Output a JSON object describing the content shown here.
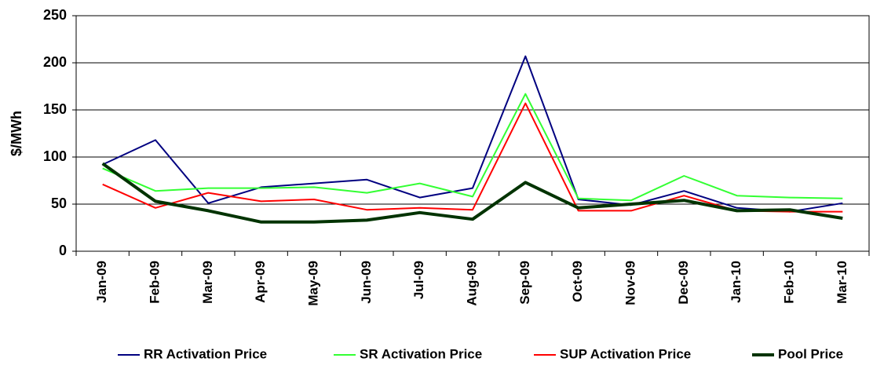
{
  "chart_data": {
    "type": "line",
    "y_label": "$/MWh",
    "categories": [
      "Jan-09",
      "Feb-09",
      "Mar-09",
      "Apr-09",
      "May-09",
      "Jun-09",
      "Jul-09",
      "Aug-09",
      "Sep-09",
      "Oct-09",
      "Nov-09",
      "Dec-09",
      "Jan-10",
      "Feb-10",
      "Mar-10"
    ],
    "series": [
      {
        "name": "RR Activation Price",
        "color": "#000080",
        "values": [
          92,
          118,
          51,
          68,
          72,
          76,
          57,
          67,
          207,
          55,
          49,
          64,
          46,
          42,
          51
        ]
      },
      {
        "name": "SR Activation Price",
        "color": "#33ff33",
        "values": [
          88,
          64,
          67,
          67,
          68,
          62,
          72,
          58,
          167,
          56,
          54,
          80,
          59,
          57,
          56
        ]
      },
      {
        "name": "SUP Activation Price",
        "color": "#ff0000",
        "values": [
          71,
          46,
          62,
          53,
          55,
          44,
          46,
          44,
          157,
          43,
          43,
          59,
          43,
          42,
          42
        ]
      },
      {
        "name": "Pool Price",
        "color": "#003300",
        "values": [
          93,
          53,
          43,
          31,
          31,
          33,
          41,
          34,
          73,
          46,
          50,
          54,
          43,
          44,
          35
        ]
      }
    ],
    "ylim": [
      0,
      250
    ],
    "yticks": [
      0,
      50,
      100,
      150,
      200,
      250
    ],
    "grid": true,
    "legend": "bottom"
  }
}
